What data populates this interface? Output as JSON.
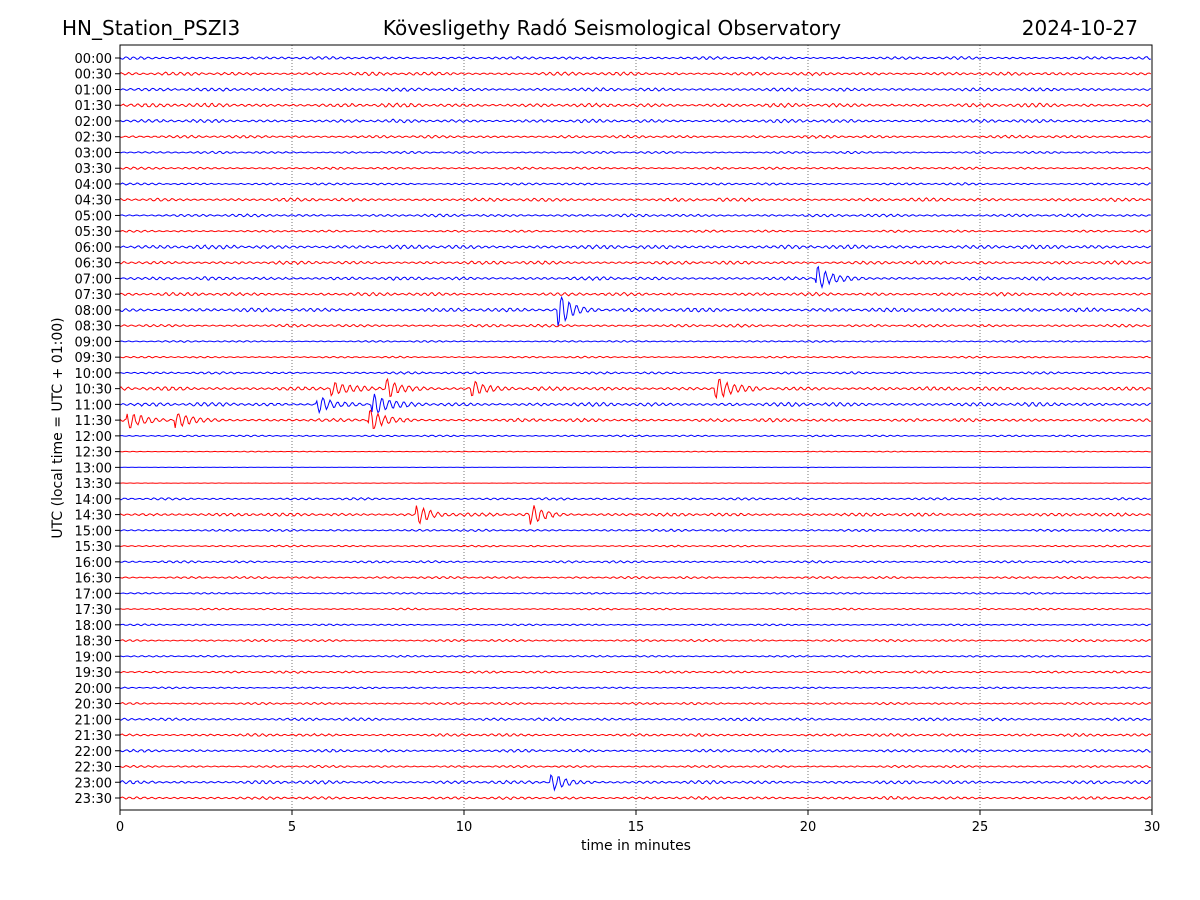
{
  "header": {
    "station": "HN_Station_PSZI3",
    "observatory": "Kövesligethy Radó Seismological Observatory",
    "date": "2024-10-27"
  },
  "chart_data": {
    "type": "line",
    "title": "Kövesligethy Radó Seismological Observatory",
    "xlabel": "time in minutes",
    "ylabel": "UTC (local time = UTC + 01:00)",
    "xlim": [
      0,
      30
    ],
    "xticks": [
      "0",
      "5",
      "10",
      "15",
      "20",
      "25",
      "30"
    ],
    "grid": "vertical dotted at x ticks",
    "colors": [
      "#0000ff",
      "#ff0000"
    ],
    "rows": [
      "00:00",
      "00:30",
      "01:00",
      "01:30",
      "02:00",
      "02:30",
      "03:00",
      "03:30",
      "04:00",
      "04:30",
      "05:00",
      "05:30",
      "06:00",
      "06:30",
      "07:00",
      "07:30",
      "08:00",
      "08:30",
      "09:00",
      "09:30",
      "10:00",
      "10:30",
      "11:00",
      "11:30",
      "12:00",
      "12:30",
      "13:00",
      "13:30",
      "14:00",
      "14:30",
      "15:00",
      "15:30",
      "16:00",
      "16:30",
      "17:00",
      "17:30",
      "18:00",
      "18:30",
      "19:00",
      "19:30",
      "20:00",
      "20:30",
      "21:00",
      "21:30",
      "22:00",
      "22:30",
      "23:00",
      "23:30"
    ],
    "noise_level": [
      0.5,
      0.6,
      0.6,
      0.7,
      0.6,
      0.5,
      0.4,
      0.4,
      0.4,
      0.6,
      0.5,
      0.4,
      0.7,
      0.6,
      0.6,
      0.6,
      0.7,
      0.5,
      0.3,
      0.3,
      0.4,
      0.7,
      0.7,
      0.6,
      0.3,
      0.15,
      0.05,
      0.05,
      0.4,
      0.6,
      0.4,
      0.3,
      0.4,
      0.4,
      0.3,
      0.3,
      0.3,
      0.4,
      0.3,
      0.4,
      0.3,
      0.4,
      0.5,
      0.5,
      0.5,
      0.4,
      0.6,
      0.5
    ],
    "events": [
      {
        "row": "07:00",
        "minute": 20.3,
        "amplitude": 2.2
      },
      {
        "row": "08:00",
        "minute": 12.8,
        "amplitude": 3.0
      },
      {
        "row": "10:30",
        "minute": 6.2,
        "amplitude": 1.3
      },
      {
        "row": "10:30",
        "minute": 7.8,
        "amplitude": 1.8
      },
      {
        "row": "10:30",
        "minute": 10.3,
        "amplitude": 1.3
      },
      {
        "row": "10:30",
        "minute": 17.4,
        "amplitude": 2.0
      },
      {
        "row": "11:00",
        "minute": 5.8,
        "amplitude": 1.5
      },
      {
        "row": "11:00",
        "minute": 7.4,
        "amplitude": 2.0
      },
      {
        "row": "11:30",
        "minute": 0.3,
        "amplitude": 1.5
      },
      {
        "row": "11:30",
        "minute": 1.7,
        "amplitude": 1.5
      },
      {
        "row": "11:30",
        "minute": 7.3,
        "amplitude": 2.0
      },
      {
        "row": "14:30",
        "minute": 8.7,
        "amplitude": 1.6
      },
      {
        "row": "14:30",
        "minute": 12.0,
        "amplitude": 1.8
      },
      {
        "row": "23:00",
        "minute": 12.6,
        "amplitude": 1.5
      }
    ]
  }
}
